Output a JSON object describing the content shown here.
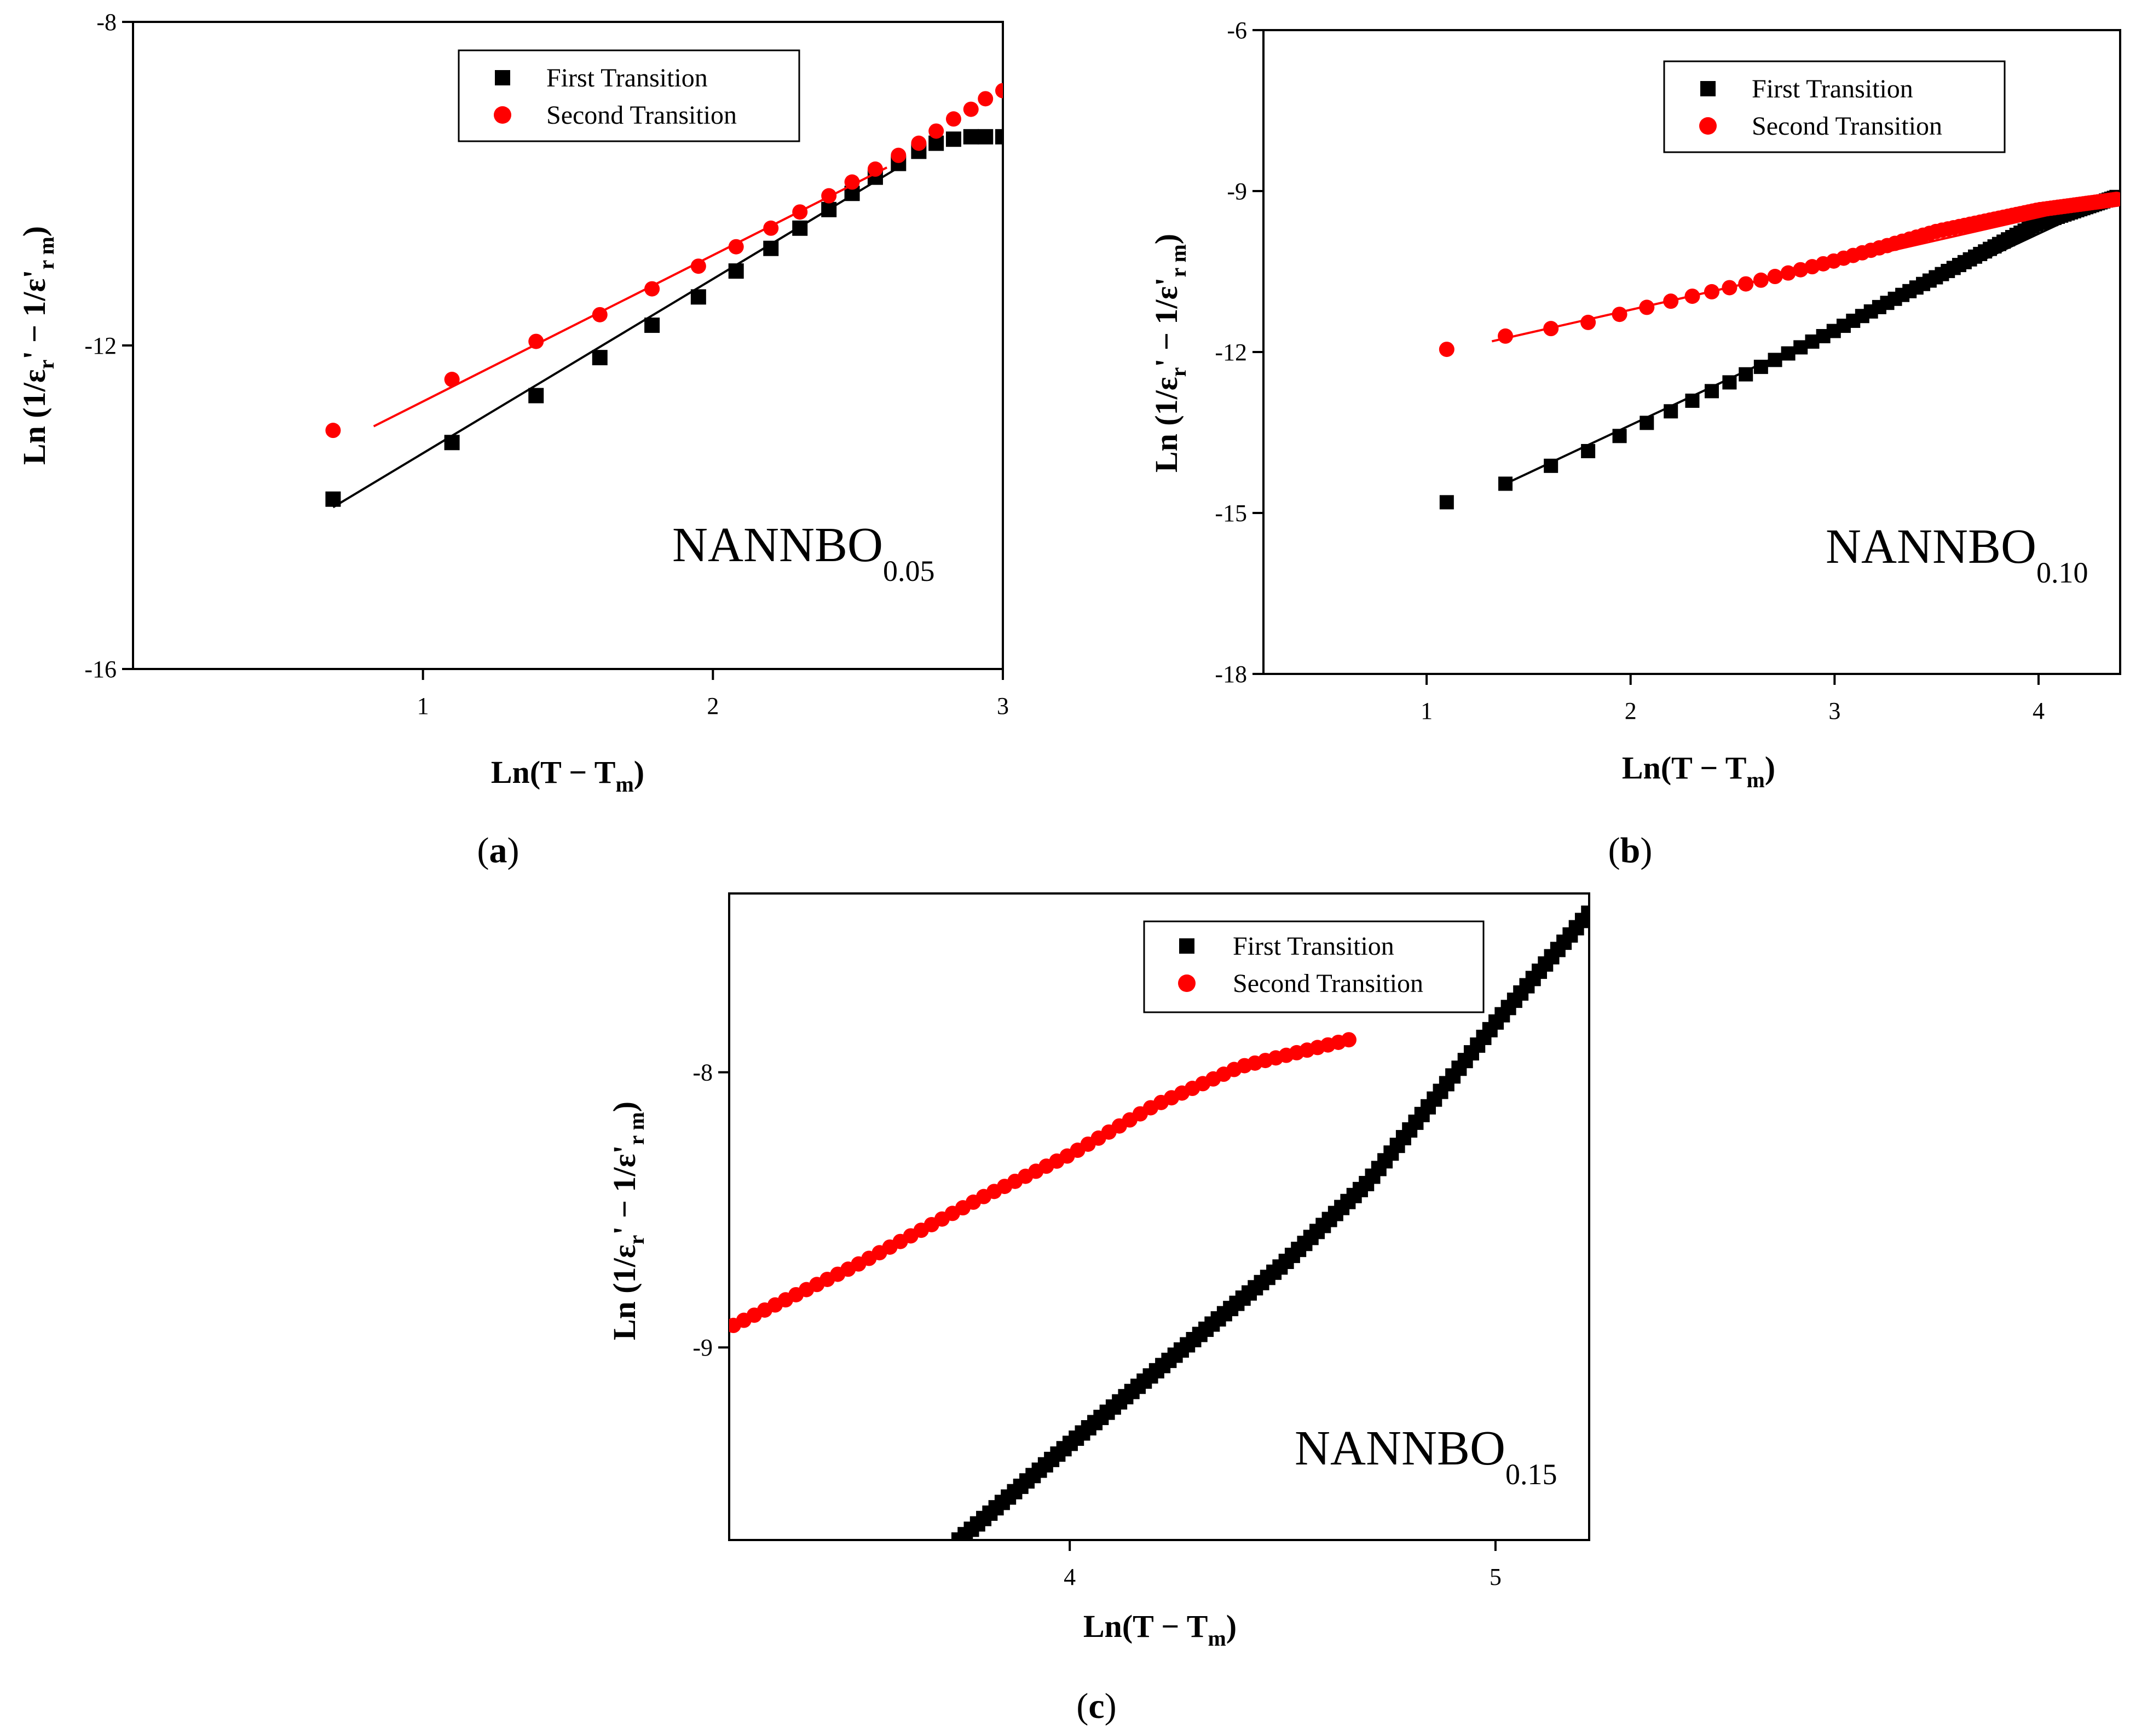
{
  "colors": {
    "first": "#000000",
    "second": "#ff0000",
    "axis": "#000000"
  },
  "chart_data": [
    {
      "id": "a",
      "type": "scatter",
      "caption": "(a)",
      "xlabel": "Ln(T − T",
      "xlabel_sub": "m",
      "xlabel_close": ")",
      "ylabel": "Ln (1/ε",
      "ylabel_sub1": "r",
      "ylabel_mid": "' − 1/ε",
      "ylabel_prime2": "'",
      "ylabel_sub2": "r m",
      "ylabel_close": ")",
      "xlim": [
        0,
        3
      ],
      "ylim": [
        -16,
        -8
      ],
      "xticks": [
        1,
        2,
        3
      ],
      "xtick_labels": [
        "1",
        "2",
        "3"
      ],
      "yticks": [
        -8,
        -12,
        -16
      ],
      "ytick_labels": [
        "-8",
        "-12",
        "-16"
      ],
      "grid": false,
      "legend_position": "top-center",
      "annotation": "NANNBO",
      "annotation_sub": "0.05",
      "series": [
        {
          "name": "First Transition",
          "marker": "square",
          "color": "#000000",
          "x": [
            0.69,
            1.1,
            1.39,
            1.61,
            1.79,
            1.95,
            2.08,
            2.2,
            2.3,
            2.4,
            2.48,
            2.56,
            2.64,
            2.71,
            2.77,
            2.83,
            2.89,
            2.94,
            3.0
          ],
          "y": [
            -13.9,
            -13.2,
            -12.62,
            -12.15,
            -11.75,
            -11.4,
            -11.08,
            -10.8,
            -10.55,
            -10.32,
            -10.12,
            -9.92,
            -9.75,
            -9.6,
            -9.5,
            -9.45,
            -9.42,
            -9.42,
            -9.42
          ],
          "fit": {
            "x": [
              0.69,
              2.64
            ],
            "y": [
              -14.0,
              -9.8
            ]
          }
        },
        {
          "name": "Second Transition",
          "marker": "circle",
          "color": "#ff0000",
          "x": [
            0.69,
            1.1,
            1.39,
            1.61,
            1.79,
            1.95,
            2.08,
            2.2,
            2.3,
            2.4,
            2.48,
            2.56,
            2.64,
            2.71,
            2.77,
            2.83,
            2.89,
            2.94,
            3.0
          ],
          "y": [
            -13.05,
            -12.42,
            -11.95,
            -11.62,
            -11.3,
            -11.02,
            -10.78,
            -10.55,
            -10.35,
            -10.15,
            -9.98,
            -9.82,
            -9.65,
            -9.5,
            -9.35,
            -9.2,
            -9.08,
            -8.95,
            -8.85
          ],
          "fit": {
            "x": [
              0.83,
              2.6
            ],
            "y": [
              -13.0,
              -9.8
            ]
          }
        }
      ]
    },
    {
      "id": "b",
      "type": "scatter",
      "caption": "(b)",
      "xlabel": "Ln(T − T",
      "xlabel_sub": "m",
      "xlabel_close": ")",
      "ylabel": "Ln (1/ε",
      "ylabel_sub1": "r",
      "ylabel_mid": "' − 1/ε",
      "ylabel_prime2": "'",
      "ylabel_sub2": "r m",
      "ylabel_close": ")",
      "xlim": [
        0.2,
        4.4
      ],
      "ylim": [
        -18,
        -6
      ],
      "xticks": [
        1,
        2,
        3,
        4
      ],
      "xtick_labels": [
        "1",
        "2",
        "3",
        "4"
      ],
      "yticks": [
        -6,
        -9,
        -12,
        -15,
        -18
      ],
      "ytick_labels": [
        "-6",
        "-9",
        "-12",
        "-15",
        "-18"
      ],
      "grid": false,
      "legend_position": "top-right",
      "annotation": "NANNBO",
      "annotation_sub": "0.10",
      "series": [
        {
          "name": "First Transition",
          "marker": "square",
          "color": "#000000",
          "generator": "lnseq",
          "x_start": 1.1,
          "x_end": 4.39,
          "y_points": [
            [
              1.1,
              -14.8
            ],
            [
              1.39,
              -14.45
            ],
            [
              1.79,
              -13.85
            ],
            [
              2.2,
              -13.1
            ],
            [
              2.6,
              -12.35
            ],
            [
              3.0,
              -11.6
            ],
            [
              3.5,
              -10.6
            ],
            [
              4.0,
              -9.6
            ],
            [
              4.39,
              -9.1
            ]
          ],
          "fit": {
            "x": [
              1.39,
              4.39
            ],
            "y": [
              -14.45,
              -9.1
            ]
          }
        },
        {
          "name": "Second Transition",
          "marker": "circle",
          "color": "#ff0000",
          "generator": "lnseq",
          "x_start": 1.1,
          "x_end": 4.39,
          "y_points": [
            [
              1.1,
              -11.95
            ],
            [
              1.39,
              -11.7
            ],
            [
              1.79,
              -11.45
            ],
            [
              2.2,
              -11.05
            ],
            [
              2.6,
              -10.7
            ],
            [
              3.0,
              -10.3
            ],
            [
              3.5,
              -9.75
            ],
            [
              4.0,
              -9.35
            ],
            [
              4.39,
              -9.15
            ]
          ],
          "fit": {
            "x": [
              1.32,
              4.39
            ],
            "y": [
              -11.8,
              -9.15
            ]
          }
        }
      ]
    },
    {
      "id": "c",
      "type": "scatter",
      "caption": "(c)",
      "xlabel": "Ln(T − T",
      "xlabel_sub": "m",
      "xlabel_close": ")",
      "ylabel": "Ln (1/ε",
      "ylabel_sub1": "r",
      "ylabel_mid": "' − 1/ε",
      "ylabel_prime2": "'",
      "ylabel_sub2": "r m",
      "ylabel_close": ")",
      "xlim": [
        3.2,
        5.22
      ],
      "ylim": [
        -9.7,
        -7.35
      ],
      "xticks": [
        4,
        5
      ],
      "xtick_labels": [
        "4",
        "5"
      ],
      "yticks": [
        -8,
        -9
      ],
      "ytick_labels": [
        "-8",
        "-9"
      ],
      "grid": false,
      "legend_position": "top-center",
      "annotation": "NANNBO",
      "annotation_sub": "0.15",
      "series": [
        {
          "name": "First Transition",
          "marker": "square",
          "color": "#000000",
          "generator": "linseq",
          "x_start": 3.74,
          "x_end": 5.22,
          "step": 0.0145,
          "y_points": [
            [
              3.74,
              -9.7
            ],
            [
              4.0,
              -9.35
            ],
            [
              4.5,
              -8.7
            ],
            [
              4.7,
              -8.4
            ],
            [
              5.0,
              -7.82
            ],
            [
              5.22,
              -7.42
            ]
          ]
        },
        {
          "name": "Second Transition",
          "marker": "circle",
          "color": "#ff0000",
          "generator": "linseq",
          "x_start": 3.21,
          "x_end": 4.66,
          "step": 0.0245,
          "y_points": [
            [
              3.21,
              -8.92
            ],
            [
              3.5,
              -8.7
            ],
            [
              3.8,
              -8.45
            ],
            [
              4.0,
              -8.3
            ],
            [
              4.2,
              -8.12
            ],
            [
              4.4,
              -7.98
            ],
            [
              4.66,
              -7.88
            ]
          ]
        }
      ]
    }
  ]
}
